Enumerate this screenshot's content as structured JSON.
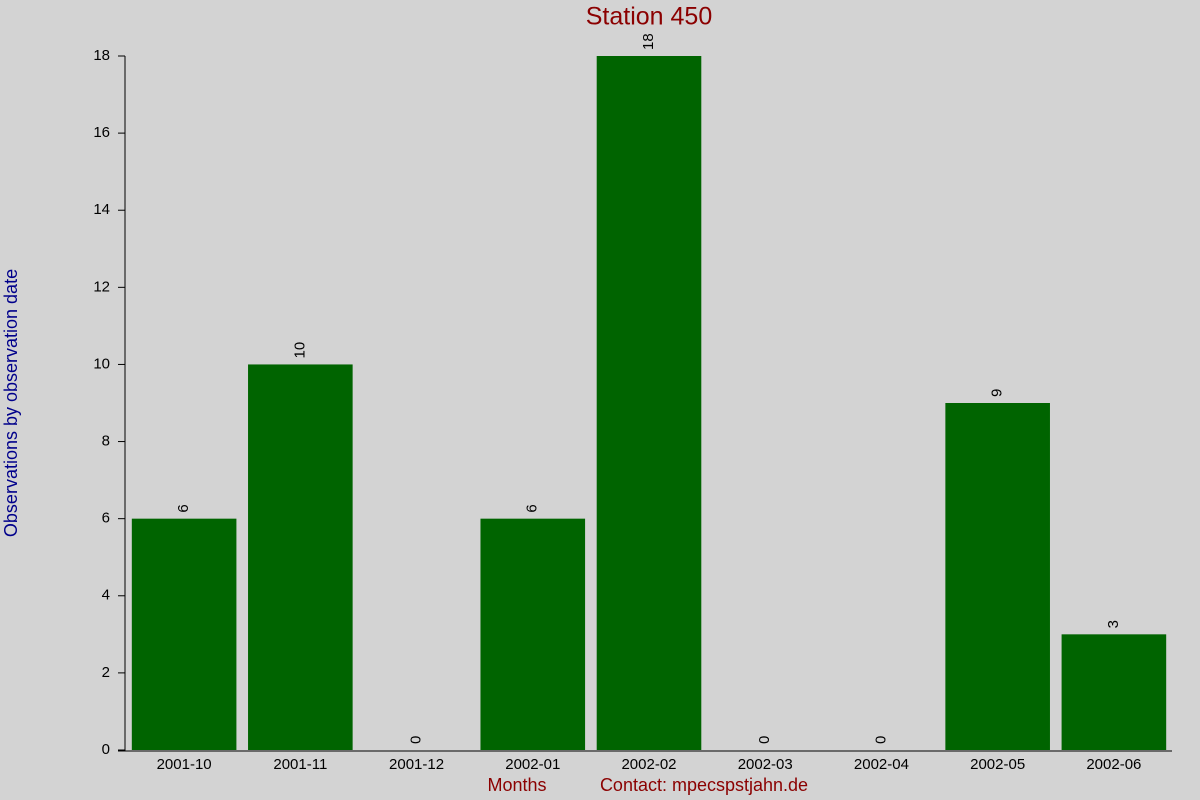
{
  "chart_data": {
    "type": "bar",
    "title": "Station 450",
    "x_label": "Months",
    "contact": "Contact: mpecspstjahn.de",
    "y_label": "Observations by observation date",
    "categories": [
      "2001-10",
      "2001-11",
      "2001-12",
      "2002-01",
      "2002-02",
      "2002-03",
      "2002-04",
      "2002-05",
      "2002-06"
    ],
    "values": [
      6,
      10,
      0,
      6,
      18,
      0,
      0,
      9,
      3
    ],
    "color": "#006400",
    "ylim": [
      0,
      18
    ],
    "yticks": [
      0,
      2,
      4,
      6,
      8,
      10,
      12,
      14,
      16,
      18
    ],
    "grid": false
  }
}
